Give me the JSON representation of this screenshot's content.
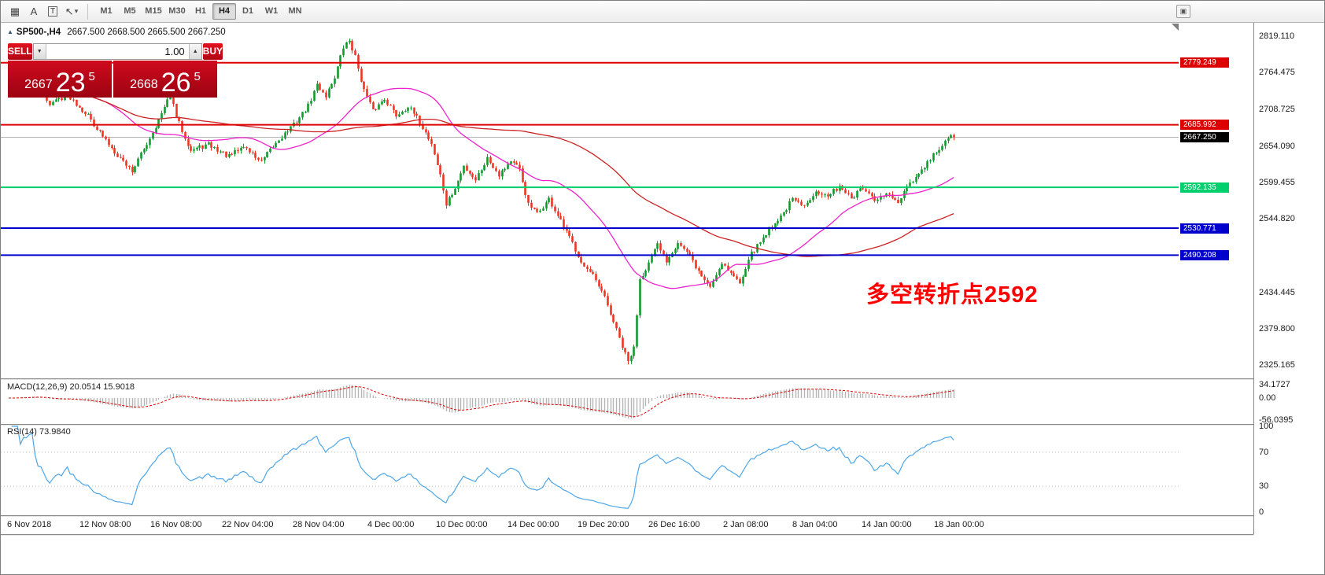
{
  "toolbar": {
    "tools": [
      {
        "name": "grid-tool-icon",
        "glyph": "▦"
      },
      {
        "name": "text-tool-icon",
        "glyph": "A"
      },
      {
        "name": "textbox-tool-icon",
        "glyph": "T",
        "boxed": true
      },
      {
        "name": "shapes-tool-icon",
        "glyph": "↖",
        "caret": true
      }
    ],
    "timeframes": [
      "M1",
      "M5",
      "M15",
      "M30",
      "H1",
      "H4",
      "D1",
      "W1",
      "MN"
    ],
    "active_timeframe": "H4",
    "right_button_glyph": "▣"
  },
  "chart_header": {
    "symbol": "SP500-,H4",
    "ohlc": "2667.500 2668.500 2665.500 2667.250"
  },
  "trade_widget": {
    "sell_label": "SELL",
    "buy_label": "BUY",
    "volume": "1.00",
    "sell_price": {
      "prefix": "2667",
      "big": "23",
      "sup": "5"
    },
    "buy_price": {
      "prefix": "2668",
      "big": "26",
      "sup": "5"
    }
  },
  "icons": {
    "volume_down": "▼",
    "volume_up": "▲",
    "dropdown_caret": "▾",
    "window_icon": "▲"
  },
  "indicators": {
    "macd_label": "MACD(12,26,9) 20.0514 15.9018",
    "rsi_label": "RSI(14) 73.9840"
  },
  "annotation": {
    "text": "多空转折点2592",
    "color": "#ff0000"
  },
  "price_lines": [
    {
      "label": "2779.249",
      "value": 2779.249,
      "color": "#dd0000",
      "width": 2
    },
    {
      "label": "2685.992",
      "value": 2685.992,
      "color": "#dd0000",
      "width": 2
    },
    {
      "label": "2667.250",
      "value": 2667.25,
      "color": "#000000",
      "width": 1,
      "style": "current"
    },
    {
      "label": "2592.135",
      "value": 2592.135,
      "color": "#00cf6d",
      "width": 2
    },
    {
      "label": "2530.771",
      "value": 2530.771,
      "color": "#0000cc",
      "width": 2
    },
    {
      "label": "2490.208",
      "value": 2490.208,
      "color": "#0000cc",
      "width": 2
    }
  ],
  "price_axis": {
    "ticks": [
      "2819.110",
      "2764.475",
      "2708.725",
      "2654.090",
      "2599.455",
      "2544.820",
      "2434.445",
      "2379.800",
      "2325.165"
    ]
  },
  "macd_axis": {
    "ticks": [
      "34.1727",
      "0.00",
      "-56.0395"
    ]
  },
  "rsi_axis": {
    "ticks": [
      "100",
      "70",
      "30",
      "0"
    ]
  },
  "time_axis": {
    "labels": [
      "6 Nov 2018",
      "12 Nov 08:00",
      "16 Nov 08:00",
      "22 Nov 04:00",
      "28 Nov 04:00",
      "4 Dec 00:00",
      "10 Dec 00:00",
      "14 Dec 00:00",
      "19 Dec 20:00",
      "26 Dec 16:00",
      "2 Jan 08:00",
      "8 Jan 04:00",
      "14 Jan 00:00",
      "18 Jan 00:00"
    ]
  },
  "chart_data": {
    "type": "candlestick",
    "symbol": "SP500-",
    "timeframe": "H4",
    "last_close": 2667.25,
    "up_color": "#119a2e",
    "down_color": "#ee3524",
    "current_line_color": "#b4b4b4",
    "price_path_anchors": [
      [
        0,
        2735
      ],
      [
        8,
        2752
      ],
      [
        14,
        2718
      ],
      [
        20,
        2732
      ],
      [
        27,
        2700
      ],
      [
        33,
        2662
      ],
      [
        38,
        2636
      ],
      [
        42,
        2617
      ],
      [
        47,
        2658
      ],
      [
        52,
        2702
      ],
      [
        55,
        2730
      ],
      [
        57,
        2698
      ],
      [
        62,
        2648
      ],
      [
        68,
        2656
      ],
      [
        75,
        2638
      ],
      [
        80,
        2654
      ],
      [
        86,
        2630
      ],
      [
        92,
        2664
      ],
      [
        97,
        2686
      ],
      [
        102,
        2714
      ],
      [
        105,
        2746
      ],
      [
        108,
        2730
      ],
      [
        111,
        2758
      ],
      [
        114,
        2802
      ],
      [
        116,
        2813
      ],
      [
        118,
        2788
      ],
      [
        121,
        2738
      ],
      [
        124,
        2706
      ],
      [
        128,
        2726
      ],
      [
        132,
        2700
      ],
      [
        136,
        2714
      ],
      [
        140,
        2690
      ],
      [
        144,
        2658
      ],
      [
        147,
        2610
      ],
      [
        149,
        2566
      ],
      [
        152,
        2590
      ],
      [
        155,
        2624
      ],
      [
        159,
        2604
      ],
      [
        163,
        2636
      ],
      [
        167,
        2612
      ],
      [
        171,
        2632
      ],
      [
        174,
        2618
      ],
      [
        177,
        2566
      ],
      [
        180,
        2552
      ],
      [
        184,
        2574
      ],
      [
        188,
        2540
      ],
      [
        192,
        2508
      ],
      [
        196,
        2473
      ],
      [
        199,
        2458
      ],
      [
        203,
        2426
      ],
      [
        206,
        2390
      ],
      [
        209,
        2352
      ],
      [
        211,
        2330
      ],
      [
        213,
        2350
      ],
      [
        215,
        2455
      ],
      [
        218,
        2478
      ],
      [
        221,
        2505
      ],
      [
        224,
        2482
      ],
      [
        228,
        2510
      ],
      [
        232,
        2488
      ],
      [
        236,
        2458
      ],
      [
        239,
        2443
      ],
      [
        243,
        2480
      ],
      [
        246,
        2463
      ],
      [
        249,
        2448
      ],
      [
        252,
        2486
      ],
      [
        256,
        2510
      ],
      [
        259,
        2530
      ],
      [
        263,
        2548
      ],
      [
        267,
        2574
      ],
      [
        271,
        2562
      ],
      [
        275,
        2589
      ],
      [
        279,
        2577
      ],
      [
        283,
        2595
      ],
      [
        287,
        2575
      ],
      [
        291,
        2591
      ],
      [
        295,
        2570
      ],
      [
        299,
        2583
      ],
      [
        303,
        2568
      ],
      [
        307,
        2597
      ],
      [
        311,
        2616
      ],
      [
        315,
        2640
      ],
      [
        318,
        2654
      ],
      [
        320,
        2665
      ],
      [
        322,
        2670
      ]
    ],
    "moving_averages": [
      {
        "period": 34,
        "color": "#ee22cc"
      },
      {
        "period": 96,
        "color": "#cc2222"
      }
    ],
    "macd": {
      "params": "12,26,9",
      "main_value": 20.0514,
      "signal_value": 15.9018,
      "axis_max": 34.1727,
      "axis_min": -56.0395,
      "histogram_color": "#b5b5b5",
      "signal_color": "#dd0000"
    },
    "rsi": {
      "period": 14,
      "value": 73.984,
      "color": "#4da6e8",
      "levels": [
        70,
        30
      ],
      "level_color": "#c4c4c4"
    }
  }
}
